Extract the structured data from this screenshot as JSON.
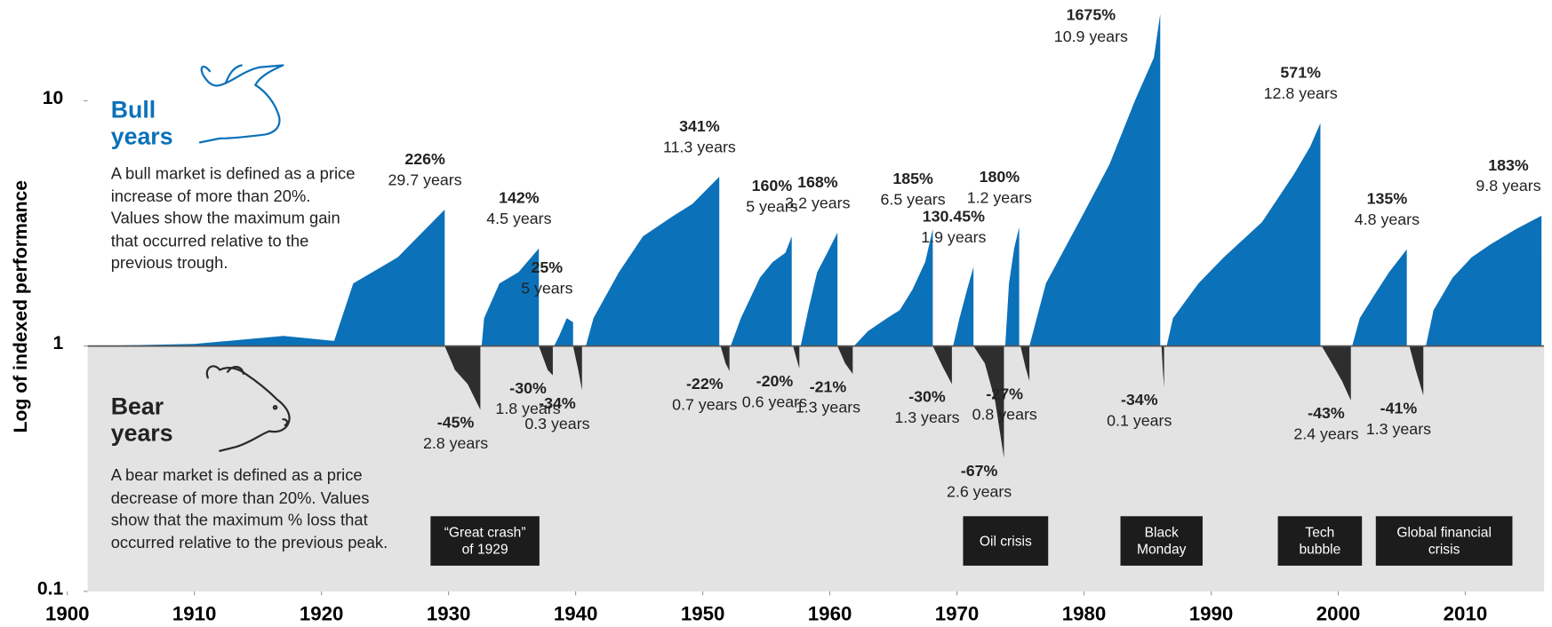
{
  "chart_data": {
    "type": "area",
    "y_label": "Log of indexed performance",
    "log_scale": true,
    "xlim": [
      1900,
      2016.2
    ],
    "ylim": [
      0.1,
      22.6
    ],
    "xticks": [
      1900,
      1910,
      1920,
      1930,
      1940,
      1950,
      1960,
      1970,
      1980,
      1990,
      2000,
      2010
    ],
    "yticks": [
      0.1,
      1,
      10
    ],
    "series": [
      {
        "name": "Bull years",
        "color": "#0b71b9",
        "description": "A bull market is defined as a price increase of more than 20%. Values show the maximum gain that occurred relative to the previous trough.",
        "markets": [
          {
            "label": "226%",
            "duration": "29.7 years",
            "x": [
              1901.6,
              1910,
              1917,
              1921,
              1922.5,
              1926,
              1929.7
            ],
            "values": [
              1,
              1.02,
              1.1,
              1.05,
              1.8,
              2.3,
              3.6
            ]
          },
          {
            "label": "142%",
            "duration": "4.5 years",
            "x": [
              1932.6,
              1932.8,
              1934,
              1935.5,
              1937.1
            ],
            "values": [
              1,
              1.3,
              1.8,
              2.0,
              2.5
            ]
          },
          {
            "label": "25%",
            "duration": "5 years",
            "x": [
              1938.3,
              1938.7,
              1939.3,
              1939.8
            ],
            "values": [
              1,
              1.1,
              1.3,
              1.25
            ]
          },
          {
            "label": "341%",
            "duration": "11.3 years",
            "x": [
              1940.8,
              1941.4,
              1943.4,
              1945.3,
              1947.7,
              1949.2,
              1951.3
            ],
            "values": [
              1,
              1.3,
              2.0,
              2.8,
              3.4,
              3.8,
              4.9
            ]
          },
          {
            "label": "160%",
            "duration": "5 years",
            "x": [
              1952.2,
              1953,
              1954.5,
              1955.5,
              1956.5,
              1957
            ],
            "values": [
              1,
              1.3,
              1.9,
              2.2,
              2.4,
              2.8
            ]
          },
          {
            "label": "168%",
            "duration": "3.2 years",
            "x": [
              1957.7,
              1958.3,
              1959,
              1959.8,
              1960.6
            ],
            "values": [
              1,
              1.4,
              2.0,
              2.4,
              2.9
            ]
          },
          {
            "label": "185%",
            "duration": "6.5 years",
            "x": [
              1961.9,
              1963,
              1964.5,
              1965.5,
              1966.5,
              1967.5,
              1968.1
            ],
            "values": [
              1,
              1.15,
              1.3,
              1.4,
              1.7,
              2.2,
              3.0
            ]
          },
          {
            "label": "130.45%",
            "duration": "1.9 years",
            "x": [
              1969.7,
              1970.2,
              1970.8,
              1971.3
            ],
            "values": [
              1,
              1.3,
              1.7,
              2.1
            ]
          },
          {
            "label": "180%",
            "duration": "1.2 years",
            "x": [
              1973.8,
              1974.1,
              1974.5,
              1974.9
            ],
            "values": [
              1,
              1.8,
              2.5,
              3.05
            ]
          },
          {
            "label": "1675%",
            "duration": "10.9 years",
            "x": [
              1975.7,
              1977,
              1980,
              1982,
              1984,
              1985.5,
              1986
            ],
            "values": [
              1,
              1.8,
              3.5,
              5.5,
              10,
              15,
              22.6
            ]
          },
          {
            "label": "571%",
            "duration": "12.8 years",
            "x": [
              1986.5,
              1987,
              1989,
              1991,
              1994,
              1996.5,
              1997.8,
              1998.6
            ],
            "values": [
              1,
              1.3,
              1.8,
              2.3,
              3.2,
              5,
              6.5,
              8.1
            ]
          },
          {
            "label": "135%",
            "duration": "4.8 years",
            "x": [
              2001.1,
              2001.7,
              2002.8,
              2004,
              2005.4
            ],
            "values": [
              1,
              1.3,
              1.6,
              2.0,
              2.48
            ]
          },
          {
            "label": "183%",
            "duration": "9.8 years",
            "x": [
              2006.9,
              2007.5,
              2009,
              2010.5,
              2012,
              2014,
              2016
            ],
            "values": [
              1,
              1.4,
              1.9,
              2.3,
              2.6,
              3.0,
              3.4
            ]
          }
        ]
      },
      {
        "name": "Bear years",
        "color": "#2e2e2e",
        "description": "A bear market is defined as a price decrease of more than 20%. Values show that the maximum % loss that occurred relative to the previous peak.",
        "markets": [
          {
            "label": "-45%",
            "duration": "2.8 years",
            "x": [
              1929.7,
              1930.5,
              1931.5,
              1932.5
            ],
            "values": [
              1,
              0.8,
              0.7,
              0.55
            ]
          },
          {
            "label": "-30%",
            "duration": "1.8 years",
            "x": [
              1937.1,
              1937.8,
              1938.2
            ],
            "values": [
              1,
              0.8,
              0.76
            ]
          },
          {
            "label": "-34%",
            "duration": "0.3 years",
            "x": [
              1939.8,
              1940.2,
              1940.5
            ],
            "values": [
              1,
              0.8,
              0.66
            ]
          },
          {
            "label": "-22%",
            "duration": "0.7 years",
            "x": [
              1951.4,
              1951.8,
              1952.1
            ],
            "values": [
              1,
              0.85,
              0.79
            ]
          },
          {
            "label": "-20%",
            "duration": "0.6 years",
            "x": [
              1957.1,
              1957.4,
              1957.6
            ],
            "values": [
              1,
              0.88,
              0.81
            ]
          },
          {
            "label": "-21%",
            "duration": "1.3 years",
            "x": [
              1960.6,
              1961.2,
              1961.8
            ],
            "values": [
              1,
              0.85,
              0.77
            ]
          },
          {
            "label": "-30%",
            "duration": "1.3 years",
            "x": [
              1968.1,
              1968.9,
              1969.6
            ],
            "values": [
              1,
              0.82,
              0.7
            ]
          },
          {
            "label": "-67%",
            "duration": "2.6 years",
            "x": [
              1971.3,
              1972.2,
              1973,
              1973.7
            ],
            "values": [
              1,
              0.85,
              0.6,
              0.35
            ]
          },
          {
            "label": "-27%",
            "duration": "0.8 years",
            "x": [
              1975,
              1975.4,
              1975.7
            ],
            "values": [
              1,
              0.82,
              0.72
            ]
          },
          {
            "label": "-34%",
            "duration": "0.1 years",
            "x": [
              1986.1,
              1986.2,
              1986.3
            ],
            "values": [
              1,
              0.8,
              0.68
            ]
          },
          {
            "label": "-43%",
            "duration": "2.4 years",
            "x": [
              1998.7,
              1999.5,
              2000.3,
              2001
            ],
            "values": [
              1,
              0.85,
              0.72,
              0.6
            ]
          },
          {
            "label": "-41%",
            "duration": "1.3 years",
            "x": [
              2005.6,
              2006.1,
              2006.7
            ],
            "values": [
              1,
              0.8,
              0.63
            ]
          }
        ]
      }
    ],
    "events": [
      "“Great crash” of 1929",
      "Oil crisis",
      "Black Monday",
      "Tech bubble",
      "Global financial crisis"
    ]
  }
}
